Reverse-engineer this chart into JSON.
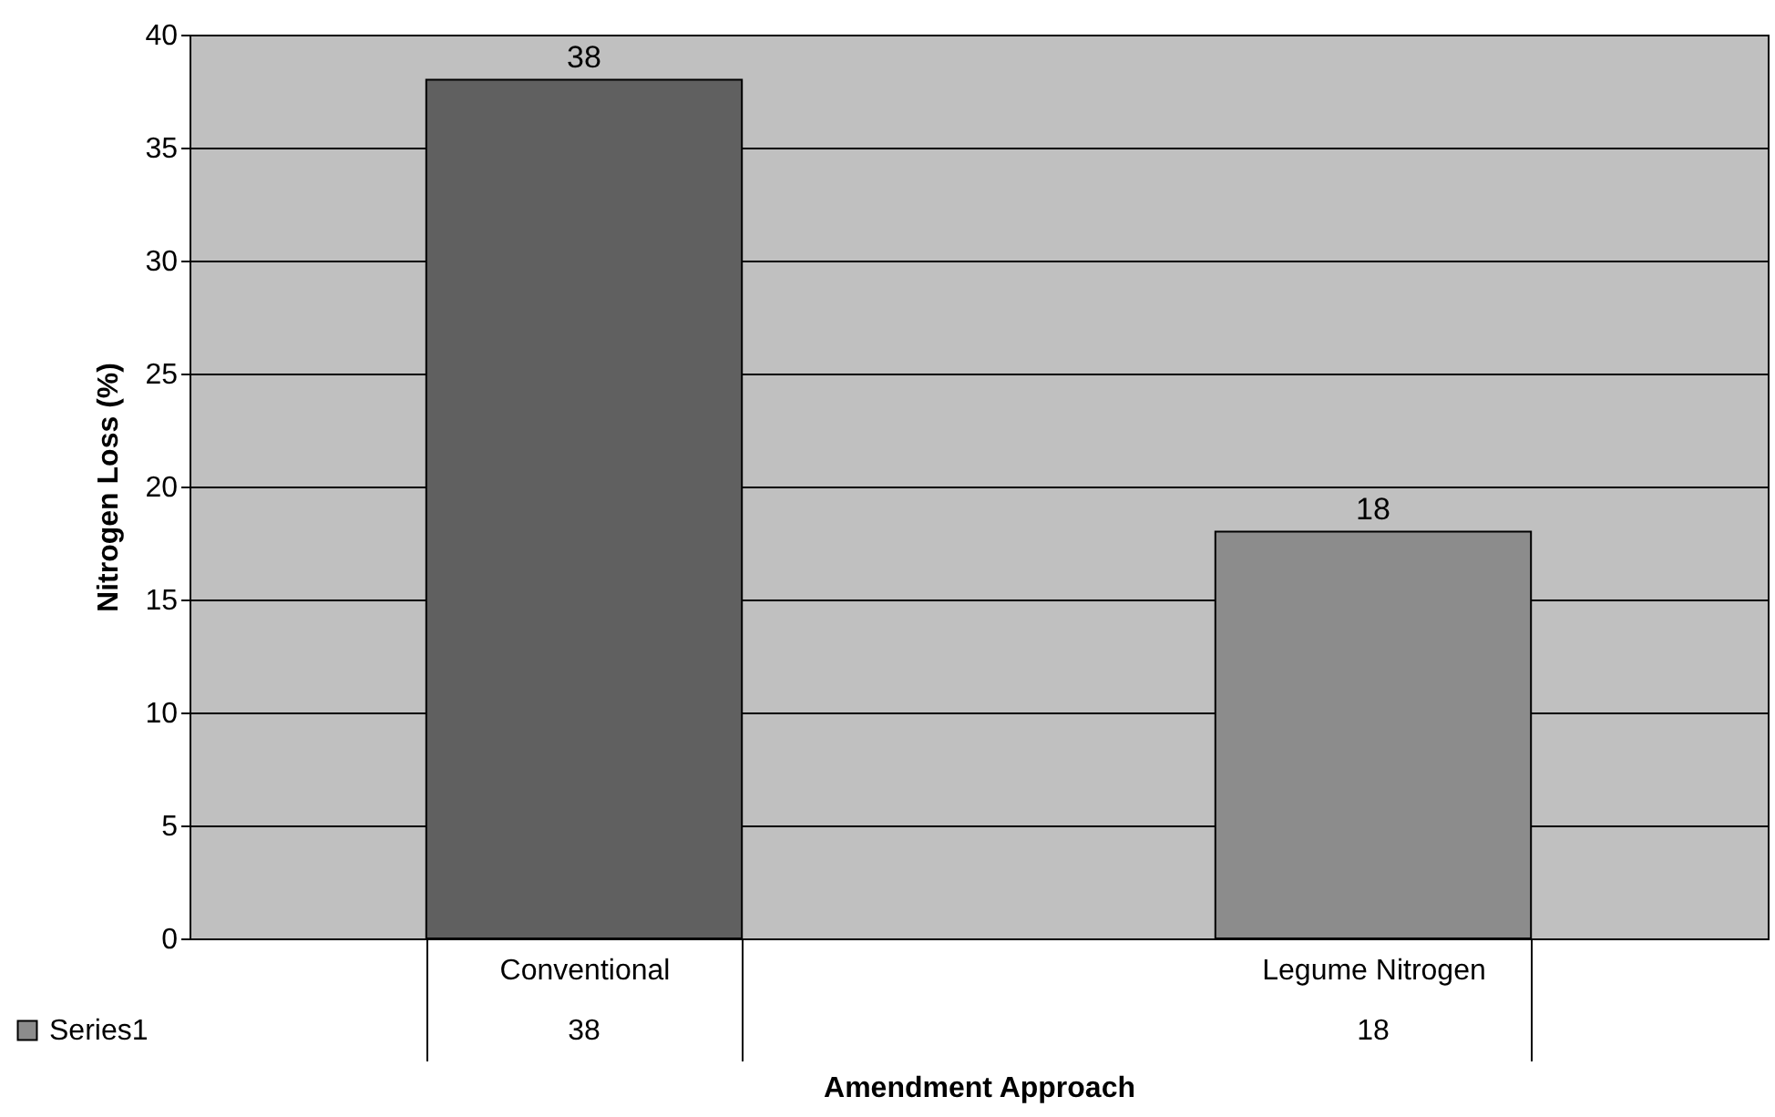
{
  "chart_data": {
    "type": "bar",
    "xlabel": "Amendment Approach",
    "ylabel": "Nitrogen Loss (%)",
    "categories": [
      "Conventional",
      "Legume Nitrogen"
    ],
    "series": [
      {
        "name": "Series1",
        "color": "#8c8c8c",
        "colors": [
          "#606060",
          "#8c8c8c"
        ],
        "values": [
          38,
          18
        ],
        "value_labels": [
          "38",
          "18"
        ]
      }
    ],
    "annotations": [
      "38",
      "18"
    ],
    "ylim": [
      0,
      40
    ],
    "yticks": [
      0,
      5,
      10,
      15,
      20,
      25,
      30,
      35,
      40
    ],
    "grid": "y",
    "legend": "bottom left"
  }
}
